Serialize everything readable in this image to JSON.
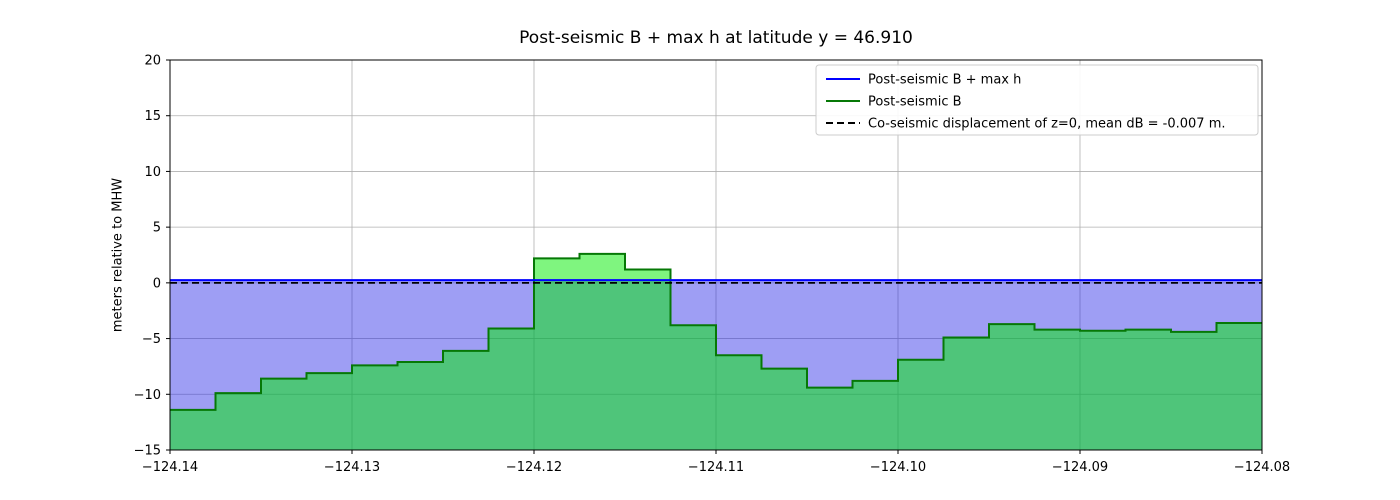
{
  "chart_data": {
    "type": "area",
    "title": "Post-seismic B + max h at latitude y = 46.910",
    "ylabel": "meters relative to MHW",
    "xlabel": "",
    "xlim": [
      -124.14,
      -124.08
    ],
    "ylim": [
      -15,
      20
    ],
    "grid": true,
    "xticks": [
      {
        "value": -124.14,
        "label": "−124.14"
      },
      {
        "value": -124.13,
        "label": "−124.13"
      },
      {
        "value": -124.12,
        "label": "−124.12"
      },
      {
        "value": -124.11,
        "label": "−124.11"
      },
      {
        "value": -124.1,
        "label": "−124.10"
      },
      {
        "value": -124.09,
        "label": "−124.09"
      },
      {
        "value": -124.08,
        "label": "−124.08"
      }
    ],
    "yticks": [
      {
        "value": -15,
        "label": "−15"
      },
      {
        "value": -10,
        "label": "−10"
      },
      {
        "value": -5,
        "label": "−5"
      },
      {
        "value": 0,
        "label": "0"
      },
      {
        "value": 5,
        "label": "5"
      },
      {
        "value": 10,
        "label": "10"
      },
      {
        "value": 15,
        "label": "15"
      },
      {
        "value": 20,
        "label": "20"
      }
    ],
    "colors": {
      "water_fill": "#2828e6",
      "water_fill_alpha": 0.45,
      "topo_fill": "#00eb00",
      "topo_fill_alpha": 0.5,
      "topo_line": "#067806",
      "b_plus_h_line": "#0000ff",
      "zero_line": "#000000",
      "grid_line": "#b0b0b0",
      "axes": "#000000"
    },
    "series": [
      {
        "name": "Post-seismic B + max h",
        "type": "hline",
        "y": 0.25,
        "linestyle": "solid"
      },
      {
        "name": "Co-seismic displacement of z=0, mean dB = -0.007 m.",
        "type": "hline",
        "y": 0.0,
        "linestyle": "dashed"
      },
      {
        "name": "Post-seismic B",
        "type": "step",
        "x_edges": [
          -124.14,
          -124.1375,
          -124.135,
          -124.1325,
          -124.13,
          -124.1275,
          -124.125,
          -124.1225,
          -124.12,
          -124.1175,
          -124.115,
          -124.1125,
          -124.11,
          -124.1075,
          -124.105,
          -124.1025,
          -124.1,
          -124.0975,
          -124.095,
          -124.0925,
          -124.09,
          -124.0875,
          -124.085,
          -124.0825,
          -124.08
        ],
        "values": [
          -11.4,
          -9.9,
          -8.6,
          -8.1,
          -7.4,
          -7.1,
          -6.1,
          -4.1,
          2.2,
          2.6,
          1.2,
          -3.8,
          -6.5,
          -7.7,
          -9.4,
          -8.8,
          -6.9,
          -4.9,
          -3.7,
          -4.2,
          -4.3,
          -4.2,
          -4.4,
          -3.6
        ]
      }
    ],
    "legend": {
      "position": "upper right",
      "entries": [
        {
          "label": "Post-seismic B + max h",
          "color": "#0000ff",
          "dash": "solid"
        },
        {
          "label": "Post-seismic B",
          "color": "#067806",
          "dash": "solid"
        },
        {
          "label": "Co-seismic displacement of z=0, mean dB = -0.007 m.",
          "color": "#000000",
          "dash": "dashed"
        }
      ]
    }
  }
}
